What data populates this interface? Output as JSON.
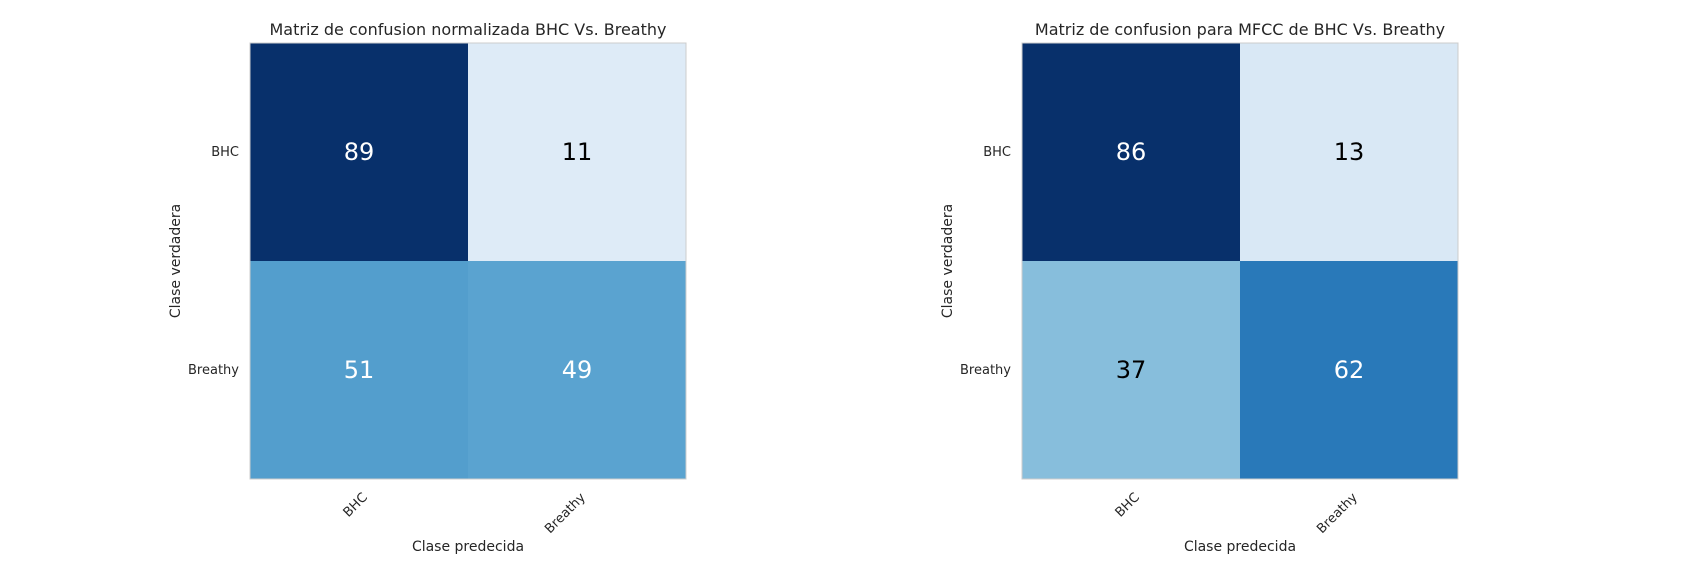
{
  "chart_data": [
    {
      "type": "heatmap",
      "title": "Matriz de confusion normalizada BHC Vs. Breathy",
      "xlabel": "Clase predecida",
      "ylabel": "Clase verdadera",
      "x_categories": [
        "BHC",
        "Breathy"
      ],
      "y_categories": [
        "BHC",
        "Breathy"
      ],
      "values": [
        [
          89,
          11
        ],
        [
          51,
          49
        ]
      ],
      "colormap": "Blues",
      "vmin": 0,
      "vmax": 89,
      "grid": false
    },
    {
      "type": "heatmap",
      "title": "Matriz de confusion para MFCC de BHC Vs. Breathy",
      "xlabel": "Clase predecida",
      "ylabel": "Clase verdadera",
      "x_categories": [
        "BHC",
        "Breathy"
      ],
      "y_categories": [
        "BHC",
        "Breathy"
      ],
      "values": [
        [
          86,
          13
        ],
        [
          37,
          62
        ]
      ],
      "colormap": "Blues",
      "vmin": 0,
      "vmax": 86,
      "grid": false
    }
  ]
}
